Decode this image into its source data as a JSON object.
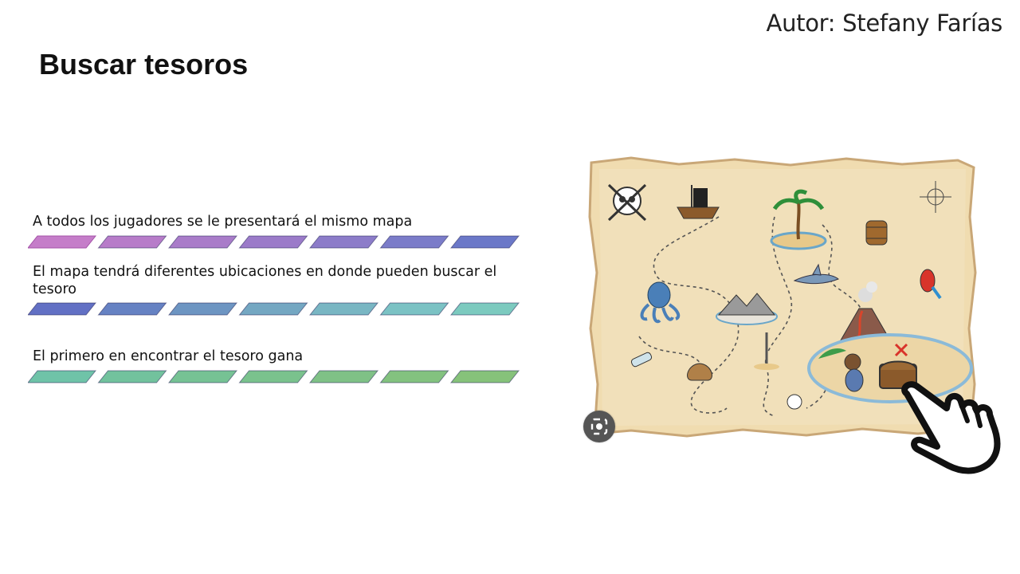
{
  "author": "Autor: Stefany Farías",
  "title": "Buscar tesoros",
  "bullets": [
    {
      "text": "A todos los jugadores se le presentará el mismo mapa"
    },
    {
      "text": "El mapa tendrá diferentes ubicaciones en donde pueden buscar el tesoro"
    },
    {
      "text": "El primero en encontrar el tesoro gana"
    }
  ],
  "strip_colors": [
    [
      "#c57dc9",
      "#b77cc9",
      "#a97cc9",
      "#9b7bc9",
      "#8c7cc9",
      "#7b7cc9",
      "#6b78c8"
    ],
    [
      "#6270c4",
      "#6682c3",
      "#6d95c2",
      "#74a7c2",
      "#79b6c3",
      "#7bc2c4",
      "#7ccabf"
    ],
    [
      "#6fc3a8",
      "#72c29d",
      "#76c294",
      "#7ac28d",
      "#7fc186",
      "#83c27f",
      "#86c27a"
    ]
  ],
  "map": {
    "icons": [
      "skull-icon",
      "pirate-ship-icon",
      "palm-island-icon",
      "barrel-icon",
      "compass-icon",
      "octopus-icon",
      "shark-icon",
      "mountain-icon",
      "volcano-icon",
      "parrot-icon",
      "bottle-icon",
      "bag-icon",
      "sword-icon",
      "monkey-icon",
      "treasure-chest-icon",
      "x-mark-icon"
    ]
  },
  "accent": {
    "map_paper": "#f0dcb0",
    "map_edge": "#c9a777",
    "path": "#555555",
    "hand": "#111111"
  }
}
